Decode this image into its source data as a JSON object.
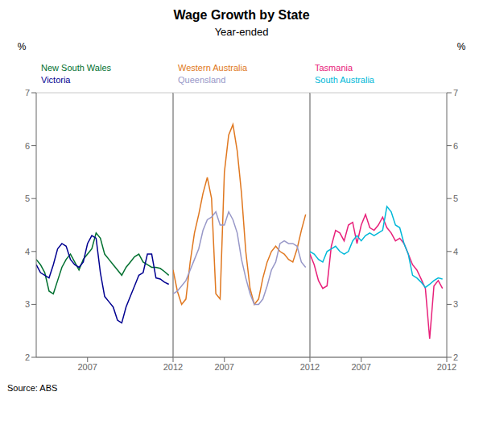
{
  "chart_data": [
    {
      "type": "line",
      "title": "Wage Growth by State",
      "subtitle": "Year-ended",
      "source": "Source: ABS",
      "ylabel": "%",
      "x": [
        2004,
        2004.25,
        2004.5,
        2004.75,
        2005,
        2005.25,
        2005.5,
        2005.75,
        2006,
        2006.25,
        2006.5,
        2006.75,
        2007,
        2007.25,
        2007.5,
        2007.75,
        2008,
        2008.25,
        2008.5,
        2008.75,
        2009,
        2009.25,
        2009.5,
        2009.75,
        2010,
        2010.25,
        2010.5,
        2010.75,
        2011,
        2011.25,
        2011.5,
        2011.75
      ],
      "xlim": [
        2004,
        2012
      ],
      "xticks": [
        2007,
        2012
      ],
      "ylim": [
        2,
        7
      ],
      "yticks": [
        2,
        3,
        4,
        5,
        6,
        7
      ],
      "grid": true,
      "series": [
        {
          "name": "New South Wales",
          "color": "#007030",
          "values": [
            3.85,
            3.75,
            3.6,
            3.25,
            3.2,
            3.45,
            3.7,
            3.85,
            3.95,
            3.8,
            3.65,
            3.85,
            3.95,
            4.05,
            4.35,
            4.25,
            3.95,
            3.85,
            3.75,
            3.65,
            3.55,
            3.7,
            3.8,
            3.9,
            3.95,
            3.8,
            3.75,
            3.7,
            3.7,
            3.68,
            3.62,
            3.55
          ]
        },
        {
          "name": "Victoria",
          "color": "#000090",
          "values": [
            3.75,
            3.6,
            3.55,
            3.5,
            3.75,
            4.05,
            4.15,
            4.1,
            3.85,
            3.75,
            3.7,
            3.8,
            4.15,
            4.3,
            4.25,
            3.6,
            3.15,
            3.05,
            2.95,
            2.7,
            2.65,
            2.95,
            3.15,
            3.35,
            3.55,
            3.6,
            3.95,
            3.95,
            3.5,
            3.48,
            3.42,
            3.38
          ]
        }
      ]
    },
    {
      "type": "line",
      "x": [
        2004,
        2004.25,
        2004.5,
        2004.75,
        2005,
        2005.25,
        2005.5,
        2005.75,
        2006,
        2006.25,
        2006.5,
        2006.75,
        2007,
        2007.25,
        2007.5,
        2007.75,
        2008,
        2008.25,
        2008.5,
        2008.75,
        2009,
        2009.25,
        2009.5,
        2009.75,
        2010,
        2010.25,
        2010.5,
        2010.75,
        2011,
        2011.25,
        2011.5,
        2011.75
      ],
      "xlim": [
        2004,
        2012
      ],
      "xticks": [
        2007,
        2012
      ],
      "ylim": [
        2,
        7
      ],
      "yticks": [
        2,
        3,
        4,
        5,
        6,
        7
      ],
      "grid": true,
      "series": [
        {
          "name": "Western Australia",
          "color": "#e07820",
          "values": [
            3.65,
            3.25,
            3.0,
            3.1,
            3.8,
            4.35,
            4.7,
            5.1,
            5.4,
            5.0,
            3.2,
            3.1,
            5.5,
            6.2,
            6.4,
            5.9,
            5.1,
            4.0,
            3.3,
            3.0,
            3.1,
            3.5,
            3.8,
            4.0,
            4.1,
            4.0,
            3.95,
            3.85,
            3.8,
            4.05,
            4.4,
            4.7
          ]
        },
        {
          "name": "Queensland",
          "color": "#9898c8",
          "values": [
            3.2,
            3.25,
            3.35,
            3.45,
            3.65,
            3.85,
            4.05,
            4.4,
            4.6,
            4.65,
            4.75,
            4.5,
            4.5,
            4.75,
            4.6,
            4.35,
            3.85,
            3.5,
            3.2,
            3.0,
            3.0,
            3.1,
            3.35,
            3.65,
            3.8,
            4.15,
            4.2,
            4.15,
            4.15,
            4.1,
            3.8,
            3.7
          ]
        }
      ]
    },
    {
      "type": "line",
      "ylabel": "%",
      "x": [
        2004,
        2004.25,
        2004.5,
        2004.75,
        2005,
        2005.25,
        2005.5,
        2005.75,
        2006,
        2006.25,
        2006.5,
        2006.75,
        2007,
        2007.25,
        2007.5,
        2007.75,
        2008,
        2008.25,
        2008.5,
        2008.75,
        2009,
        2009.25,
        2009.5,
        2009.75,
        2010,
        2010.25,
        2010.5,
        2010.75,
        2011,
        2011.25,
        2011.5,
        2011.75
      ],
      "xlim": [
        2004,
        2012
      ],
      "xticks": [
        2007,
        2012
      ],
      "ylim": [
        2,
        7
      ],
      "yticks": [
        2,
        3,
        4,
        5,
        6,
        7
      ],
      "grid": true,
      "series": [
        {
          "name": "Tasmania",
          "color": "#e8207a",
          "values": [
            3.95,
            3.75,
            3.45,
            3.3,
            3.35,
            4.1,
            4.4,
            4.35,
            4.2,
            4.5,
            4.55,
            4.15,
            4.5,
            4.7,
            4.45,
            4.4,
            4.5,
            4.65,
            4.45,
            4.35,
            4.2,
            4.25,
            4.15,
            3.95,
            3.75,
            3.65,
            3.48,
            3.3,
            2.35,
            3.35,
            3.45,
            3.3
          ]
        },
        {
          "name": "South Australia",
          "color": "#00b8d8",
          "values": [
            4.0,
            3.95,
            3.85,
            3.8,
            4.0,
            4.05,
            4.1,
            4.0,
            3.95,
            4.0,
            4.2,
            4.3,
            4.2,
            4.3,
            4.35,
            4.3,
            4.35,
            4.4,
            4.85,
            4.75,
            4.5,
            4.45,
            4.15,
            3.95,
            3.55,
            3.5,
            3.42,
            3.32,
            3.38,
            3.45,
            3.5,
            3.48
          ]
        }
      ]
    }
  ]
}
